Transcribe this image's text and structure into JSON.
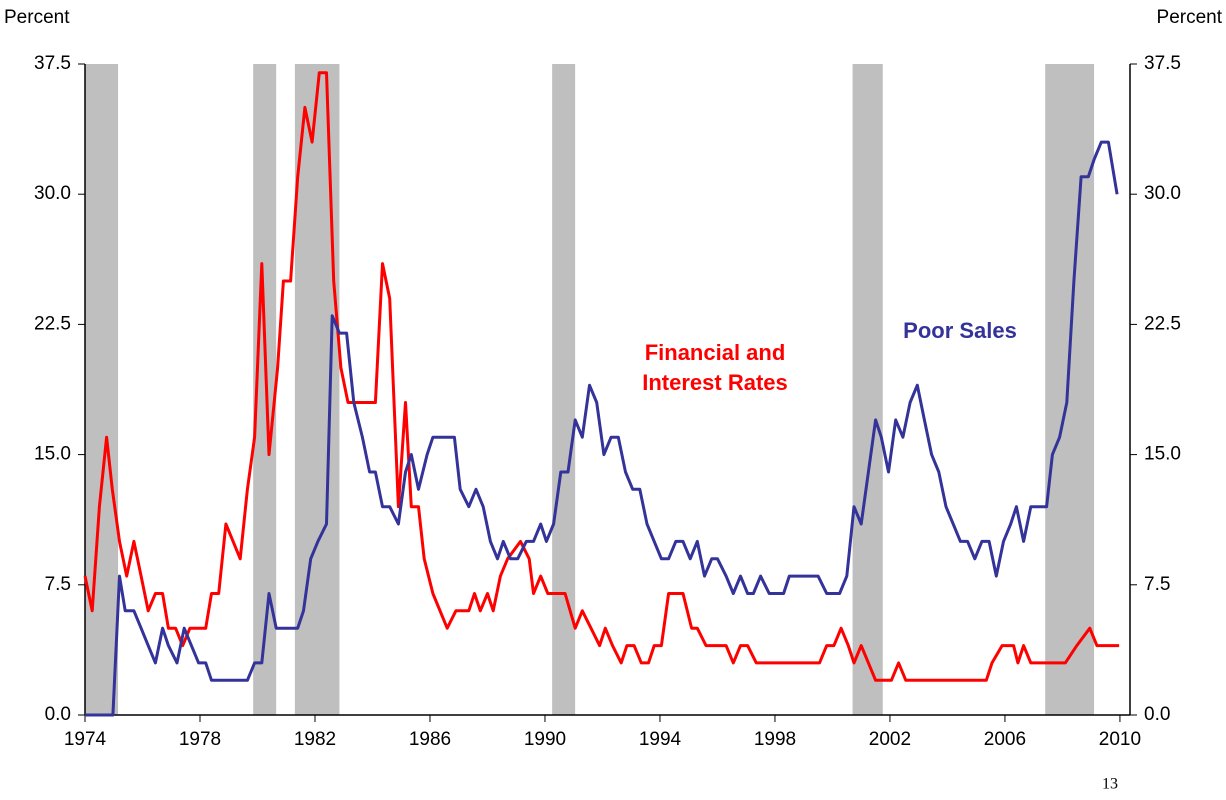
{
  "chart_data": {
    "type": "line",
    "ylabel": "Percent",
    "y2label": "Percent",
    "xlim": [
      1974,
      2010.35
    ],
    "xticks": [
      1974,
      1978,
      1982,
      1986,
      1990,
      1994,
      1998,
      2002,
      2006,
      2010
    ],
    "ylim": [
      0,
      37.5
    ],
    "yticks": [
      {
        "value": 0,
        "label": "0.0"
      },
      7.5,
      {
        "value": 15,
        "label": "15.0"
      },
      22.5,
      {
        "value": 30,
        "label": "30.0"
      },
      37.5
    ],
    "y2lim": [
      0,
      37.5
    ],
    "y2ticks": [
      {
        "value": 0,
        "label": "0.0"
      },
      7.5,
      {
        "value": 15,
        "label": "15.0"
      },
      22.5,
      {
        "value": 30,
        "label": "30.0"
      },
      37.5
    ],
    "recession_color": "#bfbfbf",
    "recessions": [
      [
        1974.0,
        1975.15
      ],
      [
        1979.85,
        1980.65
      ],
      [
        1981.3,
        1982.85
      ],
      [
        1990.25,
        1991.05
      ],
      [
        2000.7,
        2001.75
      ],
      [
        2007.4,
        2009.1
      ]
    ],
    "series": [
      {
        "name": "Financial and Interest Rates",
        "color": "#ff0000",
        "x": [
          1974.0,
          1974.25,
          1974.5,
          1974.75,
          1974.95,
          1975.2,
          1975.45,
          1975.7,
          1975.95,
          1976.2,
          1976.45,
          1976.7,
          1976.9,
          1977.15,
          1977.4,
          1977.65,
          1978.2,
          1978.4,
          1978.65,
          1978.9,
          1979.15,
          1979.4,
          1979.65,
          1979.9,
          1980.15,
          1980.4,
          1980.7,
          1980.9,
          1981.15,
          1981.4,
          1981.65,
          1981.9,
          1982.15,
          1982.4,
          1982.65,
          1982.9,
          1983.15,
          1984.1,
          1984.35,
          1984.6,
          1984.9,
          1985.15,
          1985.35,
          1985.6,
          1985.8,
          1986.1,
          1986.6,
          1986.9,
          1987.35,
          1987.55,
          1987.75,
          1988.0,
          1988.2,
          1988.45,
          1988.7,
          1989.15,
          1989.45,
          1989.6,
          1989.85,
          1990.1,
          1990.7,
          1991.05,
          1991.3,
          1991.6,
          1991.9,
          1992.1,
          1992.35,
          1992.65,
          1992.85,
          1993.1,
          1993.35,
          1993.6,
          1993.8,
          1994.05,
          1994.3,
          1994.8,
          1995.1,
          1995.3,
          1995.6,
          1996.3,
          1996.55,
          1996.8,
          1997.05,
          1997.35,
          1999.55,
          1999.8,
          2000.05,
          2000.3,
          2000.55,
          2000.75,
          2001.0,
          2001.25,
          2001.5,
          2002.05,
          2002.3,
          2002.55,
          2005.35,
          2005.55,
          2005.9,
          2006.3,
          2006.45,
          2006.65,
          2006.9,
          2008.1,
          2008.5,
          2008.95,
          2009.2,
          2009.97
        ],
        "values": [
          8,
          6,
          12,
          16,
          13,
          10,
          8,
          10,
          8,
          6,
          7,
          7,
          5,
          5,
          4,
          5,
          5,
          7,
          7,
          11,
          10,
          9,
          13,
          16,
          26,
          15,
          20,
          25,
          25,
          31,
          35,
          33,
          37,
          37,
          25,
          20,
          18,
          18,
          26,
          24,
          12,
          18,
          12,
          12,
          9,
          7,
          5,
          6,
          6,
          7,
          6,
          7,
          6,
          8,
          9,
          10,
          9,
          7,
          8,
          7,
          7,
          5,
          6,
          5,
          4,
          5,
          4,
          3,
          4,
          4,
          3,
          3,
          4,
          4,
          7,
          7,
          5,
          5,
          4,
          4,
          3,
          4,
          4,
          3,
          3,
          4,
          4,
          5,
          4,
          3,
          4,
          3,
          2,
          2,
          3,
          2,
          2,
          3,
          4,
          4,
          3,
          4,
          3,
          3,
          4,
          5,
          4,
          4
        ]
      },
      {
        "name": "Poor Sales",
        "color": "#333399",
        "x": [
          1974.0,
          1974.97,
          1975.2,
          1975.4,
          1975.7,
          1975.95,
          1976.2,
          1976.45,
          1976.7,
          1976.9,
          1977.2,
          1977.45,
          1977.7,
          1977.95,
          1978.2,
          1978.4,
          1979.65,
          1979.9,
          1980.15,
          1980.4,
          1980.65,
          1981.15,
          1981.4,
          1981.6,
          1981.85,
          1982.1,
          1982.4,
          1982.6,
          1982.85,
          1983.1,
          1983.35,
          1983.65,
          1983.9,
          1984.1,
          1984.35,
          1984.6,
          1984.9,
          1985.15,
          1985.35,
          1985.6,
          1985.9,
          1986.1,
          1986.85,
          1987.05,
          1987.35,
          1987.6,
          1987.85,
          1988.1,
          1988.35,
          1988.55,
          1988.8,
          1989.05,
          1989.35,
          1989.6,
          1989.85,
          1990.05,
          1990.3,
          1990.55,
          1990.8,
          1991.05,
          1991.3,
          1991.55,
          1991.8,
          1992.05,
          1992.3,
          1992.55,
          1992.8,
          1993.05,
          1993.3,
          1993.55,
          1993.8,
          1994.05,
          1994.3,
          1994.55,
          1994.8,
          1995.05,
          1995.3,
          1995.55,
          1995.8,
          1996.0,
          1996.3,
          1996.55,
          1996.8,
          1997.05,
          1997.25,
          1997.5,
          1997.8,
          1998.3,
          1998.5,
          1999.5,
          1999.8,
          2000.25,
          2000.5,
          2000.75,
          2001.0,
          2001.25,
          2001.5,
          2001.7,
          2001.95,
          2002.2,
          2002.45,
          2002.7,
          2002.95,
          2003.2,
          2003.45,
          2003.7,
          2003.95,
          2004.2,
          2004.45,
          2004.7,
          2004.95,
          2005.2,
          2005.45,
          2005.7,
          2005.95,
          2006.2,
          2006.4,
          2006.65,
          2006.9,
          2007.45,
          2007.65,
          2007.9,
          2008.15,
          2008.4,
          2008.65,
          2008.9,
          2009.1,
          2009.35,
          2009.6,
          2009.9
        ],
        "values": [
          0,
          0,
          8,
          6,
          6,
          5,
          4,
          3,
          5,
          4,
          3,
          5,
          4,
          3,
          3,
          2,
          2,
          3,
          3,
          7,
          5,
          5,
          5,
          6,
          9,
          10,
          11,
          23,
          22,
          22,
          18,
          16,
          14,
          14,
          12,
          12,
          11,
          14,
          15,
          13,
          15,
          16,
          16,
          13,
          12,
          13,
          12,
          10,
          9,
          10,
          9,
          9,
          10,
          10,
          11,
          10,
          11,
          14,
          14,
          17,
          16,
          19,
          18,
          15,
          16,
          16,
          14,
          13,
          13,
          11,
          10,
          9,
          9,
          10,
          10,
          9,
          10,
          8,
          9,
          9,
          8,
          7,
          8,
          7,
          7,
          8,
          7,
          7,
          8,
          8,
          7,
          7,
          8,
          12,
          11,
          14,
          17,
          16,
          14,
          17,
          16,
          18,
          19,
          17,
          15,
          14,
          12,
          11,
          10,
          10,
          9,
          10,
          10,
          8,
          10,
          11,
          12,
          10,
          12,
          12,
          15,
          16,
          18,
          25,
          31,
          31,
          32,
          33,
          33,
          30
        ]
      }
    ]
  },
  "page_number": "13"
}
